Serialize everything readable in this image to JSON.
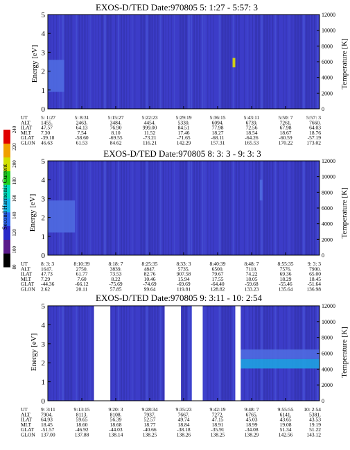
{
  "colors": {
    "background": "#ffffff",
    "spectrogram_base": "#3c3cc8",
    "spectrogram_dark": "#28288e",
    "spectrogram_light": "#4f6ae0",
    "cyan_band": "#1fa0e0",
    "axis": "#000000"
  },
  "colorbar": {
    "label": "Second Harmonic Current",
    "ticks": [
      "80",
      "100",
      "120",
      "140",
      "160",
      "180",
      "200",
      "220",
      "240"
    ],
    "colors": [
      "#000000",
      "#5a1a8a",
      "#2828c8",
      "#2a64f0",
      "#16b8e8",
      "#00e0c0",
      "#20d020",
      "#d0e000",
      "#f0a000",
      "#e00000"
    ]
  },
  "chart_data": [
    {
      "type": "heatmap",
      "title": "EXOS-D/TED   Date:970805  5: 1:27 - 5:57: 3",
      "ylabel": "Energy [eV]",
      "ylabel_right": "Temperature [K]",
      "ylim": [
        0,
        5
      ],
      "yticks": [
        "0",
        "1",
        "2",
        "3",
        "4",
        "5"
      ],
      "ylim_right": [
        0,
        12000
      ],
      "yticks_right": [
        "0",
        "2000",
        "4000",
        "6000",
        "8000",
        "10000",
        "12000"
      ],
      "grid": false,
      "table_rows": [
        "UT",
        "ALT",
        "ILAT",
        "MLT",
        "GLAT",
        "GLON"
      ],
      "table_columns": [
        [
          "5: 1:27",
          "1455.",
          "47.57",
          "7.30",
          "-39.18",
          "46.63"
        ],
        [
          "5: 8:31",
          "2463.",
          "64.13",
          "7.54",
          "-58.60",
          "61.53"
        ],
        [
          "5:15:27",
          "3484.",
          "76.90",
          "8.10",
          "-69.55",
          "84.62"
        ],
        [
          "5:22:23",
          "4454.",
          "999.00",
          "11.52",
          "-73.21",
          "116.21"
        ],
        [
          "5:29:19",
          "5330.",
          "84.51",
          "17.46",
          "-71.65",
          "142.29"
        ],
        [
          "5:36:15",
          "6094.",
          "77.98",
          "18.27",
          "-68.11",
          "157.31"
        ],
        [
          "5:43:11",
          "6739.",
          "72.56",
          "18.54",
          "-64.26",
          "165.53"
        ],
        [
          "5:50: 7",
          "7261.",
          "67.98",
          "18.67",
          "-60.59",
          "170.22"
        ],
        [
          "5:57: 3",
          "7660.",
          "64.03",
          "18.76",
          "-57.19",
          "173.02"
        ]
      ],
      "features": [
        {
          "x_frac": [
            0.0,
            0.06
          ],
          "y": [
            0.9,
            2.6
          ],
          "level": "light"
        },
        {
          "x_frac": [
            0.68,
            0.69
          ],
          "y": [
            2.2,
            2.7
          ],
          "level": "hot"
        }
      ],
      "data_gaps": []
    },
    {
      "type": "heatmap",
      "title": "EXOS-D/TED   Date:970805  8: 3: 3 - 9: 3: 3",
      "ylabel": "Energy [eV]",
      "ylabel_right": "Temperature [K]",
      "ylim": [
        0,
        5
      ],
      "yticks": [
        "0",
        "1",
        "2",
        "3",
        "4",
        "5"
      ],
      "ylim_right": [
        0,
        12000
      ],
      "yticks_right": [
        "0",
        "2000",
        "4000",
        "6000",
        "8000",
        "10000",
        "12000"
      ],
      "grid": false,
      "table_rows": [
        "UT",
        "ALT",
        "ILAT",
        "MLT",
        "GLAT",
        "GLON"
      ],
      "table_columns": [
        [
          "8: 3: 3",
          "1647.",
          "47.73",
          "7.29",
          "-44.36",
          "2.62"
        ],
        [
          "8:10:39",
          "2750.",
          "61.77",
          "7.60",
          "-66.12",
          "20.11"
        ],
        [
          "8:18: 7",
          "3839.",
          "73.53",
          "8.22",
          "-75.69",
          "57.85"
        ],
        [
          "8:25:35",
          "4847.",
          "82.76",
          "10.46",
          "-74.69",
          "99.64"
        ],
        [
          "8:33: 3",
          "5735.",
          "907.58",
          "15.94",
          "-69.69",
          "119.81"
        ],
        [
          "8:40:39",
          "6500.",
          "79.67",
          "17.55",
          "-64.40",
          "128.82"
        ],
        [
          "8:48: 7",
          "7110.",
          "74.22",
          "18.05",
          "-59.68",
          "133.23"
        ],
        [
          "8:55:35",
          "7576.",
          "69.36",
          "18.29",
          "-55.46",
          "135.64"
        ],
        [
          "9: 3: 3",
          "7900.",
          "65.00",
          "18.45",
          "-51.64",
          "136.98"
        ]
      ],
      "features": [
        {
          "x_frac": [
            0.0,
            0.1
          ],
          "y": [
            1.2,
            2.9
          ],
          "level": "light"
        },
        {
          "x_frac": [
            0.78,
            0.79
          ],
          "y": [
            2.9,
            4.0
          ],
          "level": "light"
        }
      ],
      "data_gaps": []
    },
    {
      "type": "heatmap",
      "title": "EXOS-D/TED   Date:970805  9: 3:11 - 10: 2:54",
      "ylabel": "Energy [eV]",
      "ylabel_right": "Temperature [K]",
      "ylim": [
        0,
        5
      ],
      "yticks": [
        "0",
        "1",
        "2",
        "3",
        "4",
        "5"
      ],
      "ylim_right": [
        0,
        12000
      ],
      "yticks_right": [
        "0",
        "2000",
        "4000",
        "6000",
        "8000",
        "10000",
        "12000"
      ],
      "grid": false,
      "table_rows": [
        "UT",
        "ALT",
        "ILAT",
        "MLT",
        "GLAT",
        "GLON"
      ],
      "table_columns": [
        [
          "9: 3:11",
          "7904.",
          "64.93",
          "18.45",
          "-51.57",
          "137.00"
        ],
        [
          "9:13:15",
          "8113.",
          "59.65",
          "18.60",
          "-46.92",
          "137.88"
        ],
        [
          "9:20: 3",
          "8108.",
          "56.39",
          "18.68",
          "-44.03",
          "138.14"
        ],
        [
          "9:28:34",
          "7937.",
          "52.57",
          "18.77",
          "-40.66",
          "138.25"
        ],
        [
          "9:35:23",
          "7667.",
          "49.74",
          "18.84",
          "-38.18",
          "138.26"
        ],
        [
          "9:42:19",
          "7272.",
          "47.15",
          "18.91",
          "-35.91",
          "138.25"
        ],
        [
          "9:48: 7",
          "6765.",
          "45.03",
          "18.99",
          "-34.08",
          "138.29"
        ],
        [
          "9:55:55",
          "6141.",
          "43.65",
          "19.08",
          "51.34",
          "142.56"
        ],
        [
          "10: 2:54",
          "5381.",
          "43.53",
          "19.19",
          "51.22",
          "143.12"
        ]
      ],
      "features": [
        {
          "x_frac": [
            0.71,
            1.0
          ],
          "y": [
            1.7,
            2.2
          ],
          "level": "cyan"
        },
        {
          "x_frac": [
            0.71,
            1.0
          ],
          "y": [
            2.2,
            2.7
          ],
          "level": "light"
        }
      ],
      "data_gaps": [
        [
          0.17,
          0.23
        ],
        [
          0.43,
          0.49
        ],
        [
          0.53,
          0.57
        ],
        [
          0.69,
          0.71
        ]
      ]
    }
  ]
}
